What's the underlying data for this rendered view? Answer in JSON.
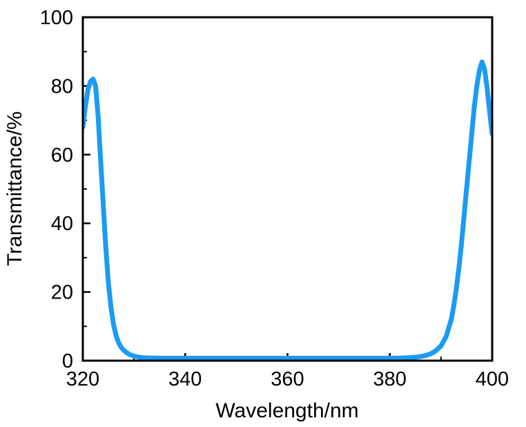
{
  "chart_data": {
    "type": "line",
    "title": "",
    "xlabel": "Wavelength/nm",
    "ylabel": "Transmittance/%",
    "xlim": [
      320,
      400
    ],
    "ylim": [
      0,
      100
    ],
    "grid": false,
    "legend": "none",
    "x_major_ticks": [
      320,
      340,
      360,
      380,
      400
    ],
    "x_tick_labels": [
      "320",
      "340",
      "360",
      "380",
      "400"
    ],
    "x_minor_ticks": [
      330,
      350,
      370,
      390
    ],
    "y_major_ticks": [
      0,
      20,
      40,
      60,
      80,
      100
    ],
    "y_tick_labels": [
      "0",
      "20",
      "40",
      "60",
      "80",
      "100"
    ],
    "y_minor_ticks": [
      10,
      30,
      50,
      70,
      90
    ],
    "series": [
      {
        "name": "transmittance",
        "x": [
          320,
          320.5,
          321,
          321.5,
          322,
          322.5,
          323,
          323.5,
          324,
          324.5,
          325,
          325.5,
          326,
          326.5,
          327,
          327.5,
          328,
          329,
          330,
          331,
          332,
          334,
          336,
          340,
          345,
          350,
          355,
          360,
          365,
          370,
          375,
          380,
          382,
          384,
          385,
          386,
          387,
          388,
          389,
          390,
          391,
          392,
          392.5,
          393,
          393.5,
          394,
          394.5,
          395,
          395.5,
          396,
          396.5,
          397,
          397.5,
          398,
          398.5,
          399,
          399.5,
          400
        ],
        "y": [
          68,
          74,
          79,
          81.3,
          82,
          80,
          71,
          58,
          45,
          32.5,
          22.5,
          15.5,
          10.5,
          7.3,
          5.2,
          3.9,
          3,
          1.9,
          1.3,
          1.0,
          0.85,
          0.75,
          0.7,
          0.7,
          0.7,
          0.7,
          0.7,
          0.7,
          0.7,
          0.7,
          0.7,
          0.7,
          0.75,
          0.9,
          1.0,
          1.2,
          1.5,
          2.0,
          2.9,
          4.3,
          7,
          12,
          16,
          21,
          27,
          34,
          42,
          50,
          58,
          66,
          74,
          80,
          84.5,
          87,
          85,
          79.5,
          72.5,
          66
        ]
      }
    ],
    "annotations": []
  },
  "colors": {
    "curve": "#1B9BF3",
    "axis": "#000000",
    "background": "#FFFFFF"
  }
}
